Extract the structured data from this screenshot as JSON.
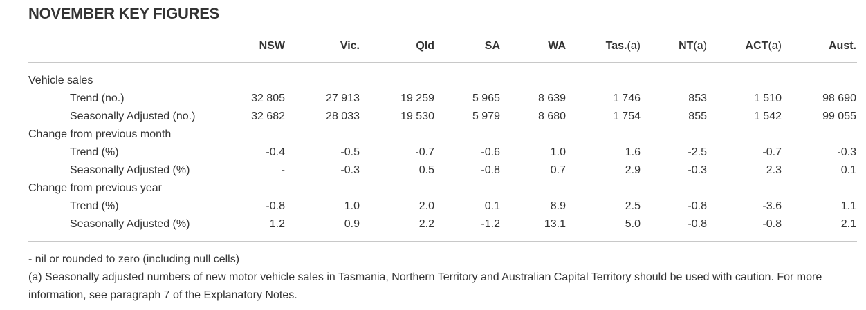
{
  "title": "NOVEMBER KEY FIGURES",
  "columns": [
    {
      "bold": "NSW",
      "suffix": ""
    },
    {
      "bold": "Vic.",
      "suffix": ""
    },
    {
      "bold": "Qld",
      "suffix": ""
    },
    {
      "bold": "SA",
      "suffix": ""
    },
    {
      "bold": "WA",
      "suffix": ""
    },
    {
      "bold": "Tas.",
      "suffix": "(a)"
    },
    {
      "bold": "NT",
      "suffix": "(a)"
    },
    {
      "bold": "ACT",
      "suffix": "(a)"
    },
    {
      "bold": "Aust.",
      "suffix": ""
    }
  ],
  "rows": [
    {
      "label": "Vehicle sales",
      "level": 0,
      "values": []
    },
    {
      "label": "Trend (no.)",
      "level": 1,
      "values": [
        "32 805",
        "27 913",
        "19 259",
        "5 965",
        "8 639",
        "1 746",
        "853",
        "1 510",
        "98 690"
      ]
    },
    {
      "label": "Seasonally Adjusted (no.)",
      "level": 1,
      "values": [
        "32 682",
        "28 033",
        "19 530",
        "5 979",
        "8 680",
        "1 754",
        "855",
        "1 542",
        "99 055"
      ]
    },
    {
      "label": "Change from previous month",
      "level": 0,
      "values": []
    },
    {
      "label": "Trend (%)",
      "level": 1,
      "values": [
        "-0.4",
        "-0.5",
        "-0.7",
        "-0.6",
        "1.0",
        "1.6",
        "-2.5",
        "-0.7",
        "-0.3"
      ]
    },
    {
      "label": "Seasonally Adjusted (%)",
      "level": 1,
      "values": [
        "-",
        "-0.3",
        "0.5",
        "-0.8",
        "0.7",
        "2.9",
        "-0.3",
        "2.3",
        "0.1"
      ]
    },
    {
      "label": "Change from previous year",
      "level": 0,
      "values": []
    },
    {
      "label": "Trend (%)",
      "level": 1,
      "values": [
        "-0.8",
        "1.0",
        "2.0",
        "0.1",
        "8.9",
        "2.5",
        "-0.8",
        "-3.6",
        "1.1"
      ]
    },
    {
      "label": "Seasonally Adjusted (%)",
      "level": 1,
      "values": [
        "1.2",
        "0.9",
        "2.2",
        "-1.2",
        "13.1",
        "5.0",
        "-0.8",
        "-0.8",
        "2.1"
      ]
    }
  ],
  "notes": [
    "- nil or rounded to zero (including null cells)",
    "(a) Seasonally adjusted numbers of new motor vehicle sales in Tasmania, Northern Territory and Australian Capital Territory should be used with caution. For more information, see paragraph 7 of the Explanatory Notes."
  ]
}
